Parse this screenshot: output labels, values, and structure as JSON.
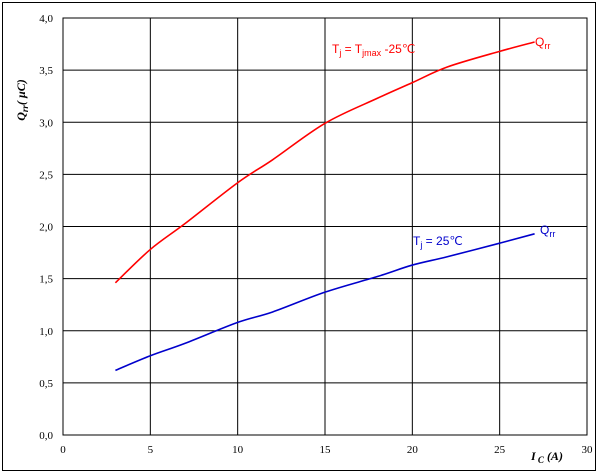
{
  "chart_data": {
    "type": "line",
    "xlabel": "I_C (A)",
    "ylabel": "Q_rr (µC)",
    "xlim": [
      0,
      30
    ],
    "ylim": [
      0,
      4.0
    ],
    "xticks": [
      "0",
      "5",
      "10",
      "15",
      "20",
      "25",
      "30"
    ],
    "yticks": [
      "0,0",
      "0,5",
      "1,0",
      "1,5",
      "2,0",
      "2,5",
      "3,0",
      "3,5",
      "4,0"
    ],
    "grid": true,
    "series": [
      {
        "name": "Qrr",
        "condition": "Tj = Tjmax -25℃",
        "color": "#ff0000",
        "x": [
          3,
          5,
          7,
          10,
          12,
          15,
          18,
          20,
          22,
          25,
          27
        ],
        "y": [
          1.46,
          1.78,
          2.03,
          2.42,
          2.64,
          2.99,
          3.23,
          3.38,
          3.53,
          3.68,
          3.77
        ]
      },
      {
        "name": "Qrr",
        "condition": "Tj = 25℃",
        "color": "#0000cc",
        "x": [
          3,
          5,
          7,
          10,
          12,
          15,
          18,
          20,
          22,
          25,
          27
        ],
        "y": [
          0.62,
          0.76,
          0.88,
          1.08,
          1.18,
          1.37,
          1.52,
          1.63,
          1.71,
          1.84,
          1.93
        ]
      }
    ]
  }
}
